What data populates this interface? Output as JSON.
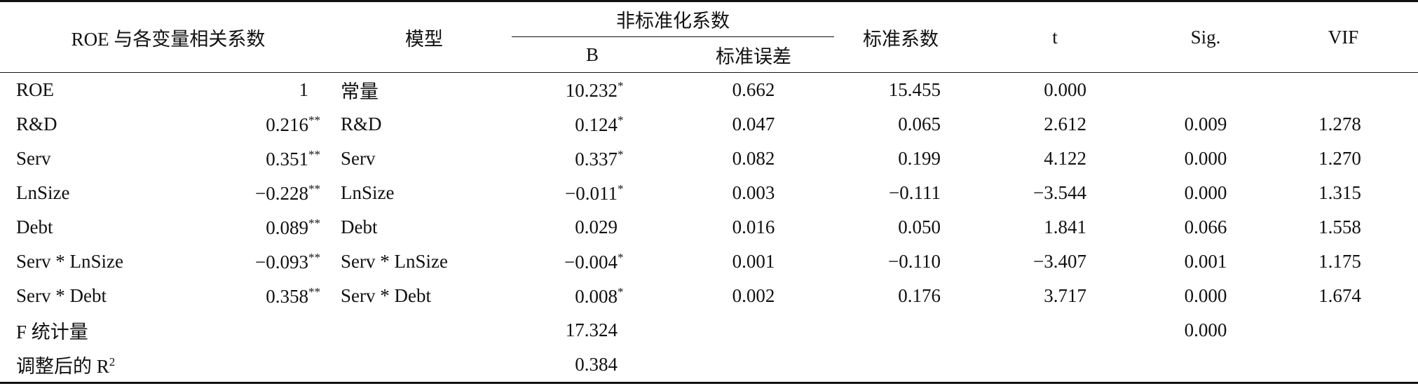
{
  "header": {
    "correlation": "ROE 与各变量相关系数",
    "model": "模型",
    "unstandardized": "非标准化系数",
    "b": "B",
    "std_error": "标准误差",
    "beta": "标准系数",
    "t": "t",
    "sig": "Sig.",
    "vif": "VIF"
  },
  "rows": [
    {
      "variable": "ROE",
      "correlation": "1",
      "model": "常量",
      "b": "10.232",
      "b_mark": "*",
      "std_error": "0.662",
      "beta": "15.455",
      "t": "0.000"
    },
    {
      "variable": "R&D",
      "correlation": "0.216",
      "correlation_mark": "**",
      "model": "R&D",
      "b": "0.124",
      "b_mark": "*",
      "std_error": "0.047",
      "beta": "0.065",
      "t": "2.612",
      "sig": "0.009",
      "vif": "1.278"
    },
    {
      "variable": "Serv",
      "correlation": "0.351",
      "correlation_mark": "**",
      "model": "Serv",
      "b": "0.337",
      "b_mark": "*",
      "std_error": "0.082",
      "beta": "0.199",
      "t": "4.122",
      "sig": "0.000",
      "vif": "1.270"
    },
    {
      "variable": "LnSize",
      "correlation": "−0.228",
      "correlation_mark": "**",
      "model": "LnSize",
      "b": "−0.011",
      "b_mark": "*",
      "std_error": "0.003",
      "beta": "−0.111",
      "t": "−3.544",
      "sig": "0.000",
      "vif": "1.315"
    },
    {
      "variable": "Debt",
      "correlation": "0.089",
      "correlation_mark": "**",
      "model": "Debt",
      "b": "0.029",
      "std_error": "0.016",
      "beta": "0.050",
      "t": "1.841",
      "sig": "0.066",
      "vif": "1.558"
    },
    {
      "variable": "Serv * LnSize",
      "correlation": "−0.093",
      "correlation_mark": "**",
      "model": "Serv * LnSize",
      "b": "−0.004",
      "b_mark": "*",
      "std_error": "0.001",
      "beta": "−0.110",
      "t": "−3.407",
      "sig": "0.001",
      "vif": "1.175"
    },
    {
      "variable": "Serv * Debt",
      "correlation": "0.358",
      "correlation_mark": "**",
      "model": "Serv * Debt",
      "b": "0.008",
      "b_mark": "*",
      "std_error": "0.002",
      "beta": "0.176",
      "t": "3.717",
      "sig": "0.000",
      "vif": "1.674"
    },
    {
      "variable": "F 统计量",
      "b": "17.324",
      "sig": "0.000"
    },
    {
      "variable": "调整后的 R",
      "variable_sup": "2",
      "b": "0.384"
    }
  ]
}
